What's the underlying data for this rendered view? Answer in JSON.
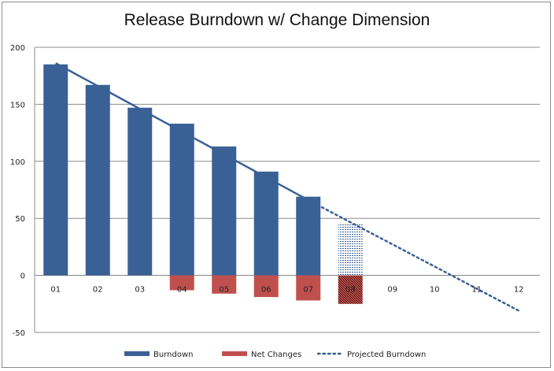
{
  "chart_data": {
    "type": "bar",
    "title": "Release Burndown w/ Change Dimension",
    "categories": [
      "01",
      "02",
      "03",
      "04",
      "05",
      "06",
      "07",
      "08",
      "09",
      "10",
      "11",
      "12"
    ],
    "series": [
      {
        "name": "Burndown",
        "type": "bar",
        "color": "#3a6196",
        "values": [
          185,
          167,
          147,
          133,
          113,
          91,
          69,
          45,
          null,
          null,
          null,
          null
        ]
      },
      {
        "name": "Net Changes",
        "type": "bar",
        "color": "#c0504d",
        "values": [
          0,
          0,
          0,
          -13,
          -16,
          -19,
          -22,
          -25,
          null,
          null,
          null,
          null
        ]
      },
      {
        "name": "Projected Burndown",
        "type": "line",
        "style": "dotted",
        "color": "#3a6196",
        "from": [
          "07",
          66
        ],
        "to": [
          "12",
          -31
        ]
      }
    ],
    "trend_line": {
      "type": "line",
      "style": "solid",
      "color": "#3a6196",
      "from": [
        "01",
        186
      ],
      "to": [
        "07",
        66
      ]
    },
    "hatched_category": "08",
    "ylim": [
      -50,
      200
    ],
    "yticks": [
      -50,
      0,
      50,
      100,
      150,
      200
    ],
    "grid": true,
    "legend_position": "bottom"
  }
}
